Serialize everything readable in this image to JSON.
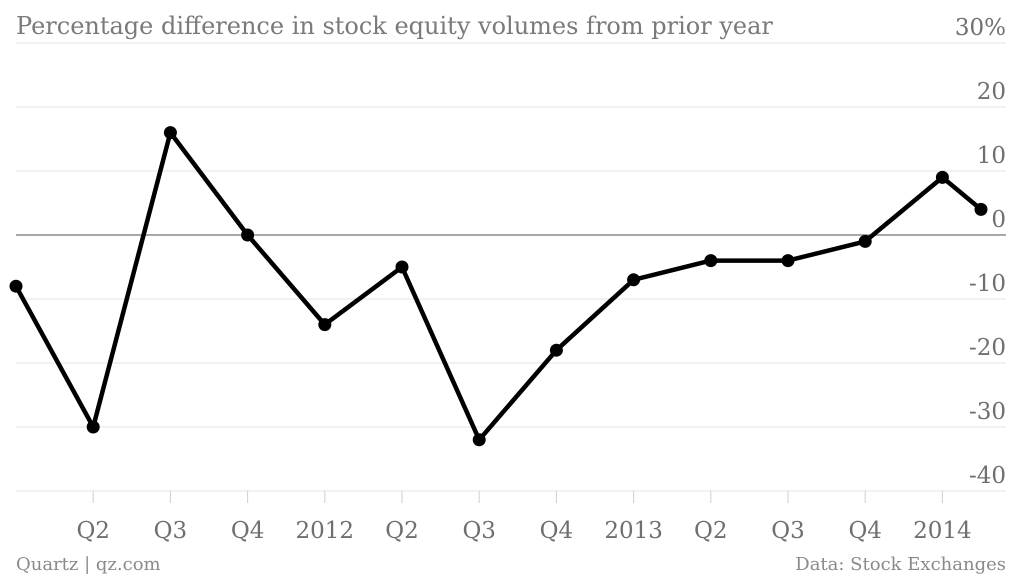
{
  "chart_data": {
    "type": "line",
    "title": "Percentage difference in stock equity volumes from prior year",
    "ylim": [
      -40,
      30
    ],
    "y_ticks": [
      {
        "value": 30,
        "label": "30%"
      },
      {
        "value": 20,
        "label": "20"
      },
      {
        "value": 10,
        "label": "10"
      },
      {
        "value": 0,
        "label": "0"
      },
      {
        "value": -10,
        "label": "-10"
      },
      {
        "value": -20,
        "label": "-20"
      },
      {
        "value": -30,
        "label": "-30"
      },
      {
        "value": -40,
        "label": "-40"
      }
    ],
    "x_ticks": [
      {
        "index": 1,
        "label": "Q2"
      },
      {
        "index": 2,
        "label": "Q3"
      },
      {
        "index": 3,
        "label": "Q4"
      },
      {
        "index": 4,
        "label": "2012"
      },
      {
        "index": 5,
        "label": "Q2"
      },
      {
        "index": 6,
        "label": "Q3"
      },
      {
        "index": 7,
        "label": "Q4"
      },
      {
        "index": 8,
        "label": "2013"
      },
      {
        "index": 9,
        "label": "Q2"
      },
      {
        "index": 10,
        "label": "Q3"
      },
      {
        "index": 11,
        "label": "Q4"
      },
      {
        "index": 12,
        "label": "2014"
      }
    ],
    "x": [
      0,
      1,
      2,
      3,
      4,
      5,
      6,
      7,
      8,
      9,
      10,
      11,
      12,
      12.5
    ],
    "values": [
      -8,
      -30,
      16,
      0,
      -14,
      -5,
      -32,
      -18,
      -7,
      -4,
      -4,
      -1,
      9,
      4
    ],
    "grid": true,
    "line_color": "#000000"
  },
  "footer": {
    "source_left": "Quartz | qz.com",
    "source_right": "Data: Stock Exchanges"
  }
}
